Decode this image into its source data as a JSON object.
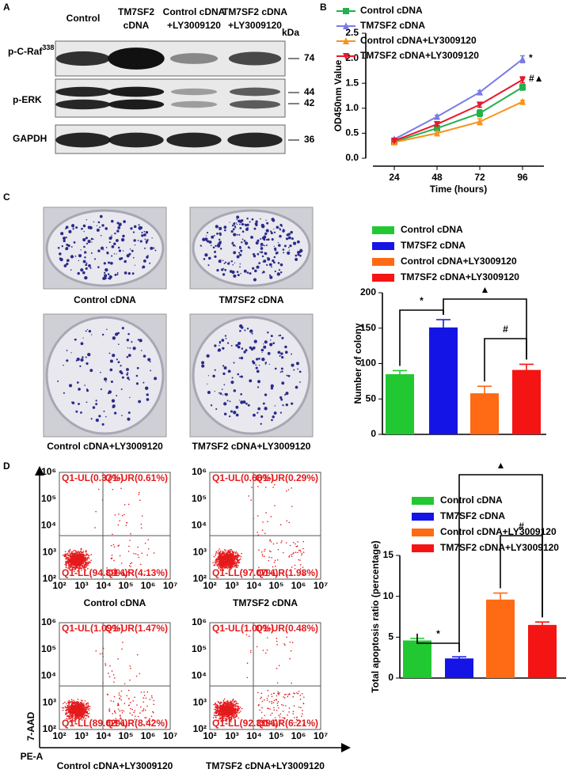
{
  "panel_labels": [
    "A",
    "B",
    "C",
    "D"
  ],
  "western_blot": {
    "lanes": [
      [
        "Control"
      ],
      [
        "TM7SF2",
        "cDNA"
      ],
      [
        "Control cDNA",
        "+LY3009120"
      ],
      [
        "TM7SF2 cDNA",
        "+LY3009120"
      ]
    ],
    "kda_label": "kDa",
    "rows": [
      {
        "label": "p-C-Raf",
        "superscript": "338",
        "markers": [
          "74"
        ]
      },
      {
        "label": "p-ERK",
        "markers": [
          "44",
          "42"
        ]
      },
      {
        "label": "GAPDH",
        "markers": [
          "36"
        ]
      }
    ]
  },
  "colony_images": {
    "captions": [
      "Control cDNA",
      "TM7SF2 cDNA",
      "Control cDNA+LY3009120",
      "TM7SF2 cDNA+LY3009120"
    ]
  },
  "flow_cytometry": {
    "y_axis_label": "7-AAD",
    "x_axis_label": "PE-A",
    "x_tick_labels": [
      "10²",
      "10³",
      "10⁴",
      "10⁵",
      "10⁶",
      "10⁷"
    ],
    "y_tick_labels": [
      "10²",
      "10³",
      "10⁴",
      "10⁵",
      "10⁶"
    ],
    "plots": [
      {
        "caption": "Control cDNA",
        "quadrants": [
          "Q1-UL(0.37%)",
          "Q1-UR(0.61%)",
          "Q1-LL(94.89%)",
          "Q1-LR(4.13%)"
        ]
      },
      {
        "caption": "TM7SF2 cDNA",
        "quadrants": [
          "Q1-UL(0.66%)",
          "Q1-UR(0.29%)",
          "Q1-LL(97.07%)",
          "Q1-LR(1.98%)"
        ]
      },
      {
        "caption": "Control cDNA+LY3009120",
        "quadrants": [
          "Q1-UL(1.09%)",
          "Q1-UR(1.47%)",
          "Q1-LL(89.02%)",
          "Q1-LR(8.42%)"
        ]
      },
      {
        "caption": "TM7SF2 cDNA+LY3009120",
        "quadrants": [
          "Q1-UL(1.00%)",
          "Q1-UR(0.48%)",
          "Q1-LL(92.31%)",
          "Q1-LR(6.21%)"
        ]
      }
    ]
  },
  "chart_data": [
    {
      "type": "line",
      "x_label": "Time (hours)",
      "y_label": "OD450nm Value",
      "x": [
        24,
        48,
        72,
        96
      ],
      "xlim": [
        12,
        108
      ],
      "xticks": [
        24,
        48,
        72,
        96
      ],
      "ylim": [
        0,
        2.5
      ],
      "yticks": [
        {
          "value": 0,
          "label": "0.0"
        },
        0.5,
        {
          "value": 1,
          "label": "1.0"
        },
        1.5,
        {
          "value": 2,
          "label": "2.0"
        },
        2.5
      ],
      "series": [
        {
          "name": "Control cDNA",
          "color": "#22b14c",
          "marker": "square",
          "values": [
            0.33,
            0.6,
            0.9,
            1.42
          ],
          "errors": [
            0.02,
            0.04,
            0.07,
            0.06
          ]
        },
        {
          "name": "TM7SF2 cDNA",
          "color": "#7b7be6",
          "marker": "triangle",
          "values": [
            0.38,
            0.83,
            1.32,
            1.98
          ],
          "errors": [
            0.02,
            0.03,
            0.03,
            0.07
          ]
        },
        {
          "name": "Control cDNA+LY3009120",
          "color": "#f7941d",
          "marker": "triangle",
          "values": [
            0.32,
            0.5,
            0.73,
            1.13
          ],
          "errors": [
            0.02,
            0.04,
            0.06,
            0.03
          ]
        },
        {
          "name": "TM7SF2 cDNA+LY3009120",
          "color": "#e8192c",
          "marker": "triangle-down",
          "values": [
            0.35,
            0.68,
            1.07,
            1.57
          ],
          "errors": [
            0.02,
            0.03,
            0.05,
            0.06
          ]
        }
      ],
      "annotations": [
        "*",
        "#▲"
      ]
    },
    {
      "type": "bar",
      "y_label": "Number of colony",
      "ylim": [
        0,
        200
      ],
      "yticks": [
        0,
        50,
        100,
        150,
        200
      ],
      "series": [
        {
          "name": "Control cDNA",
          "color": "#22c832",
          "values": [
            85
          ],
          "errors": [
            5
          ]
        },
        {
          "name": "TM7SF2 cDNA",
          "color": "#1414e6",
          "values": [
            151
          ],
          "errors": [
            11
          ]
        },
        {
          "name": "Control cDNA+LY3009120",
          "color": "#ff6a14",
          "values": [
            58
          ],
          "errors": [
            10
          ]
        },
        {
          "name": "TM7SF2 cDNA+LY3009120",
          "color": "#f51414",
          "values": [
            91
          ],
          "errors": [
            8
          ]
        }
      ],
      "annotations": [
        "*",
        "▲",
        "#"
      ]
    },
    {
      "type": "bar",
      "y_label": "Total apoptosis ratio (percentage)",
      "ylim": [
        0,
        15
      ],
      "yticks": [
        0,
        5,
        10,
        15
      ],
      "series": [
        {
          "name": "Control cDNA",
          "color": "#22c832",
          "values": [
            4.6
          ],
          "errors": [
            0.25
          ]
        },
        {
          "name": "TM7SF2 cDNA",
          "color": "#1414e6",
          "values": [
            2.4
          ],
          "errors": [
            0.2
          ]
        },
        {
          "name": "Control cDNA+LY3009120",
          "color": "#ff6a14",
          "values": [
            9.6
          ],
          "errors": [
            0.8
          ]
        },
        {
          "name": "TM7SF2 cDNA+LY3009120",
          "color": "#f51414",
          "values": [
            6.5
          ],
          "errors": [
            0.35
          ]
        }
      ],
      "annotations": [
        "*",
        "▲",
        "#"
      ]
    }
  ]
}
